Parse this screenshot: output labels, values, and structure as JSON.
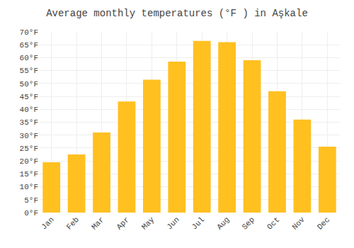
{
  "chart_data": {
    "type": "bar",
    "title": "Average monthly temperatures (°F ) in Aşkale",
    "categories": [
      "Jan",
      "Feb",
      "Mar",
      "Apr",
      "May",
      "Jun",
      "Jul",
      "Aug",
      "Sep",
      "Oct",
      "Nov",
      "Dec"
    ],
    "values": [
      19.5,
      22.5,
      31.0,
      43.0,
      51.5,
      58.5,
      66.5,
      66.0,
      59.0,
      47.0,
      36.0,
      25.5
    ],
    "color": "#FFC020",
    "ylim": [
      0,
      70
    ],
    "yticks": [
      {
        "value": 0,
        "label": "0°F"
      },
      {
        "value": 5,
        "label": "5°F"
      },
      {
        "value": 10,
        "label": "10°F"
      },
      {
        "value": 15,
        "label": "15°F"
      },
      {
        "value": 20,
        "label": "20°F"
      },
      {
        "value": 25,
        "label": "25°F"
      },
      {
        "value": 30,
        "label": "30°F"
      },
      {
        "value": 35,
        "label": "35°F"
      },
      {
        "value": 40,
        "label": "40°F"
      },
      {
        "value": 45,
        "label": "45°F"
      },
      {
        "value": 50,
        "label": "50°F"
      },
      {
        "value": 55,
        "label": "55°F"
      },
      {
        "value": 60,
        "label": "60°F"
      },
      {
        "value": 65,
        "label": "65°F"
      },
      {
        "value": 70,
        "label": "70°F"
      }
    ],
    "grid": true
  }
}
